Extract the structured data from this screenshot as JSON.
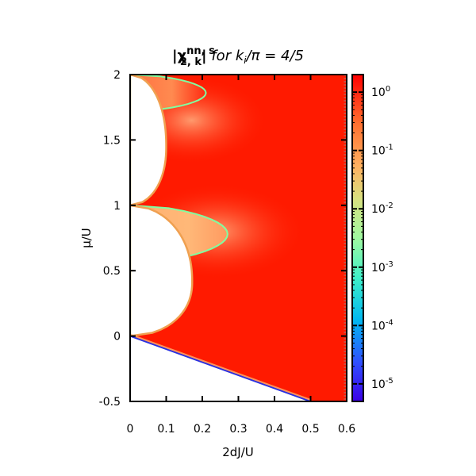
{
  "chart_data": {
    "type": "heatmap",
    "title": {
      "main": "|χ",
      "superscript": "nn, s",
      "subscript": "2, k",
      "close": "|",
      "rest_a": " for k",
      "rest_sub": "i",
      "rest_b": "/π = 4/5"
    },
    "xlabel": "2dJ/U",
    "ylabel": "μ/U",
    "xlim": [
      0,
      0.6
    ],
    "ylim": [
      -0.5,
      2
    ],
    "x_ticks": [
      {
        "value": 0,
        "label": "0"
      },
      {
        "value": 0.1,
        "label": "0.1"
      },
      {
        "value": 0.2,
        "label": "0.2"
      },
      {
        "value": 0.3,
        "label": "0.3"
      },
      {
        "value": 0.4,
        "label": "0.4"
      },
      {
        "value": 0.5,
        "label": "0.5"
      },
      {
        "value": 0.6,
        "label": "0.6"
      }
    ],
    "y_ticks": [
      {
        "value": -0.5,
        "label": "-0.5"
      },
      {
        "value": 0,
        "label": "0"
      },
      {
        "value": 0.5,
        "label": "0.5"
      },
      {
        "value": 1,
        "label": "1"
      },
      {
        "value": 1.5,
        "label": "1.5"
      },
      {
        "value": 2,
        "label": "2"
      }
    ],
    "colorbar": {
      "scale": "log",
      "range": [
        5e-06,
        2
      ],
      "ticks": [
        {
          "value": 1,
          "base": "10",
          "exp": "0"
        },
        {
          "value": 0.1,
          "base": "10",
          "exp": "-1"
        },
        {
          "value": 0.01,
          "base": "10",
          "exp": "-2"
        },
        {
          "value": 0.001,
          "base": "10",
          "exp": "-3"
        },
        {
          "value": 0.0001,
          "base": "10",
          "exp": "-4"
        },
        {
          "value": 1e-05,
          "base": "10",
          "exp": "-5"
        }
      ],
      "colors": [
        "#3b00e6",
        "#3050ff",
        "#00b8f0",
        "#40f0c8",
        "#a0f8a0",
        "#d8e080",
        "#ffb060",
        "#ff7030",
        "#ff0000"
      ]
    },
    "mott_lobes": [
      {
        "mu_range": [
          0,
          1
        ],
        "tip": [
          0.172,
          0.414
        ]
      },
      {
        "mu_range": [
          1,
          2
        ],
        "tip": [
          0.1,
          1.449
        ]
      }
    ],
    "inner_light_region_upper": {
      "mu_range": [
        1,
        2
      ],
      "x_max": 0.21
    },
    "inner_light_region_lower": {
      "mu_range": [
        0.56,
        1
      ],
      "x_max": 0.27
    },
    "vacuum_boundary": {
      "slope": -1,
      "x_range": [
        0,
        0.5
      ]
    }
  }
}
